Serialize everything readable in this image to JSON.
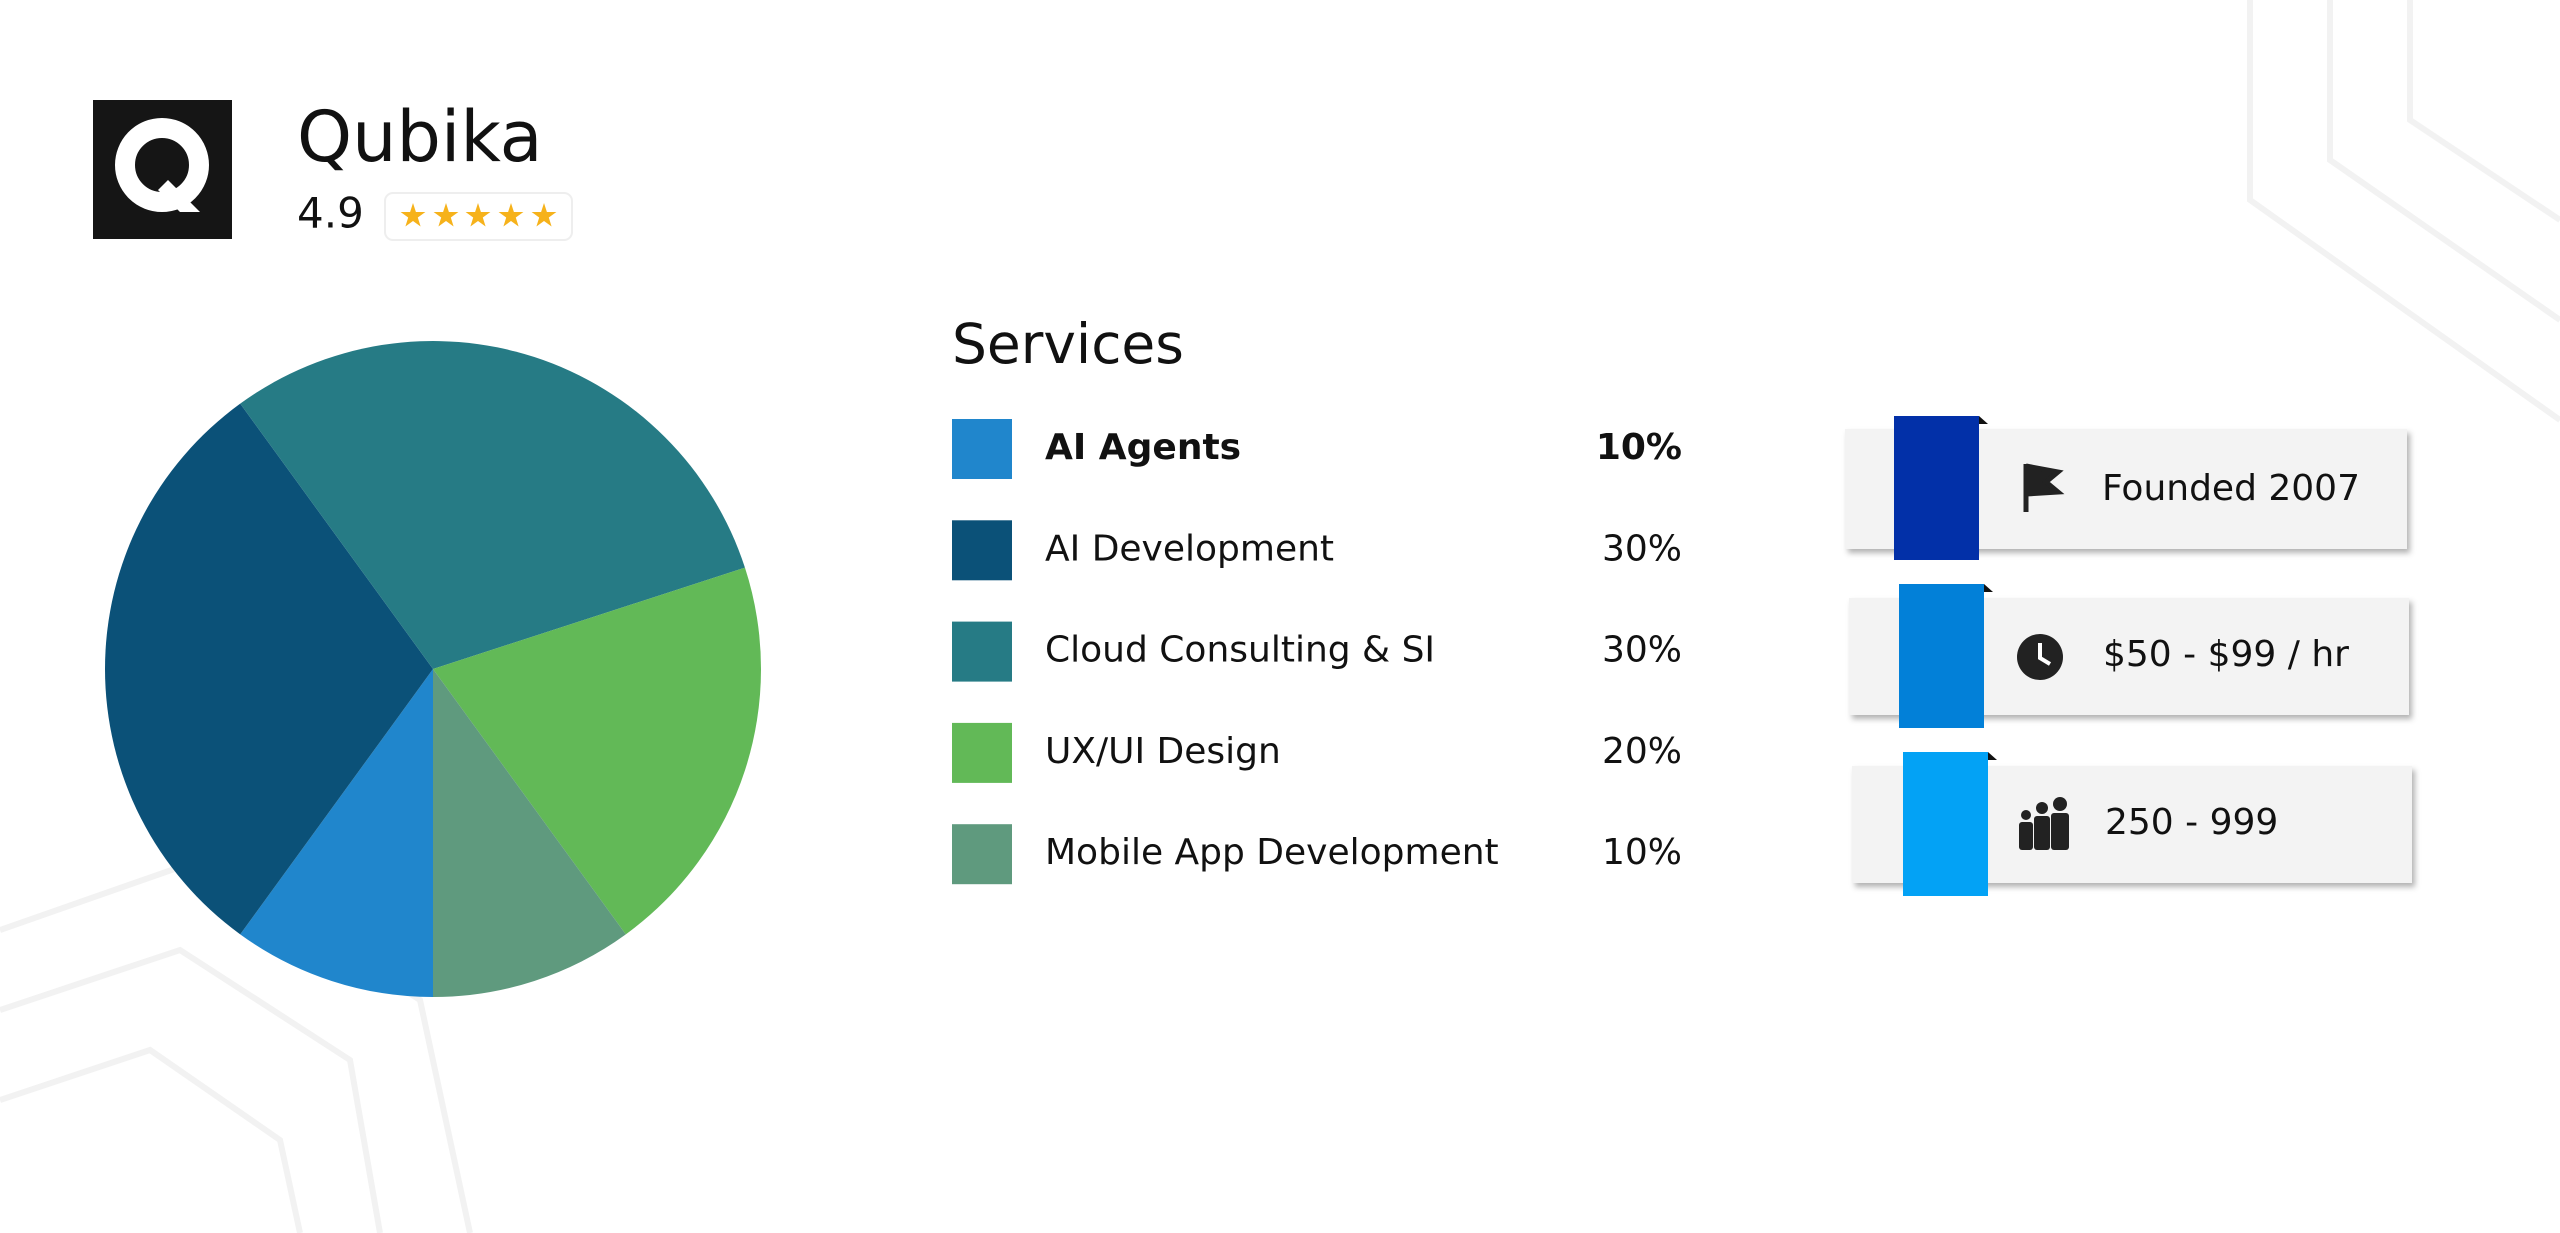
{
  "header": {
    "title": "Qubika",
    "rating": "4.9"
  },
  "chart_data": {
    "type": "pie",
    "title": "Services",
    "categories": [
      "AI Agents",
      "AI Development",
      "Cloud Consulting & SI",
      "UX/UI Design",
      "Mobile App Development"
    ],
    "values": [
      10,
      30,
      30,
      20,
      10
    ],
    "value_labels": [
      "10%",
      "30%",
      "30%",
      "20%",
      "10%"
    ],
    "colors": [
      "#2086cc",
      "#0b5178",
      "#267b85",
      "#62b957",
      "#5f9a7e"
    ]
  },
  "info": {
    "items": [
      "Founded 2007",
      "$50 - $99 / hr",
      "250 - 999"
    ]
  }
}
